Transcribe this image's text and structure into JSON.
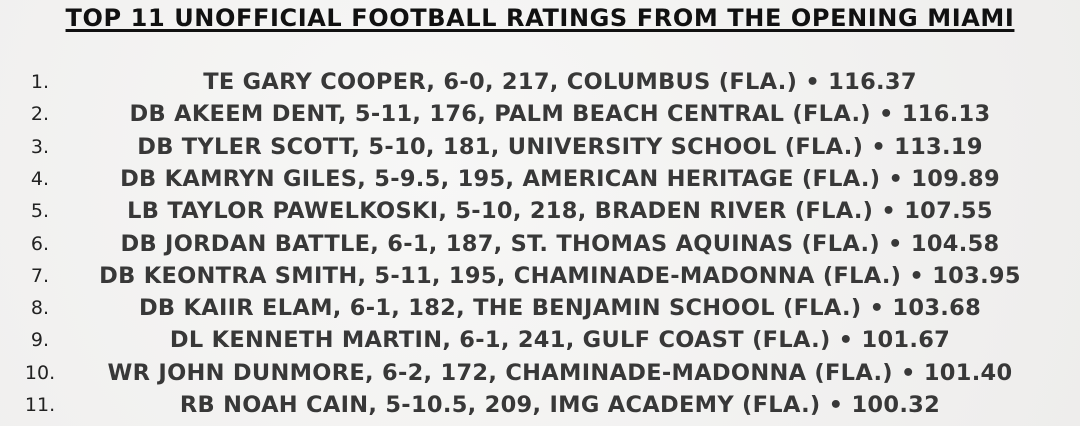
{
  "header": {
    "title": "TOP 11 UNOFFICIAL FOOTBALL RATINGS FROM THE OPENING MIAMI"
  },
  "items": [
    {
      "number": "1.",
      "text": "TE GARY COOPER, 6-0, 217, COLUMBUS (FLA.) • 116.37"
    },
    {
      "number": "2.",
      "text": "DB AKEEM DENT, 5-11, 176, PALM BEACH CENTRAL (FLA.) • 116.13"
    },
    {
      "number": "3.",
      "text": "DB TYLER SCOTT, 5-10, 181, UNIVERSITY SCHOOL (FLA.) • 113.19"
    },
    {
      "number": "4.",
      "text": "DB KAMRYN GILES, 5-9.5, 195, AMERICAN HERITAGE (FLA.) • 109.89"
    },
    {
      "number": "5.",
      "text": "LB TAYLOR PAWELKOSKI, 5-10, 218, BRADEN RIVER (FLA.) • 107.55"
    },
    {
      "number": "6.",
      "text": "DB JORDAN BATTLE, 6-1, 187, ST. THOMAS AQUINAS (FLA.) • 104.58"
    },
    {
      "number": "7.",
      "text": "DB KEONTRA SMITH, 5-11, 195, CHAMINADE-MADONNA (FLA.) • 103.95"
    },
    {
      "number": "8.",
      "text": "DB KAIIR ELAM, 6-1, 182, THE BENJAMIN SCHOOL (FLA.) • 103.68"
    },
    {
      "number": "9.",
      "text": "DL KENNETH MARTIN, 6-1, 241, GULF COAST (FLA.) • 101.67"
    },
    {
      "number": "10.",
      "text": "WR JOHN DUNMORE, 6-2, 172, CHAMINADE-MADONNA (FLA.) • 101.40"
    },
    {
      "number": "11.",
      "text": "RB NOAH CAIN, 5-10.5, 209, IMG ACADEMY (FLA.) • 100.32"
    }
  ]
}
